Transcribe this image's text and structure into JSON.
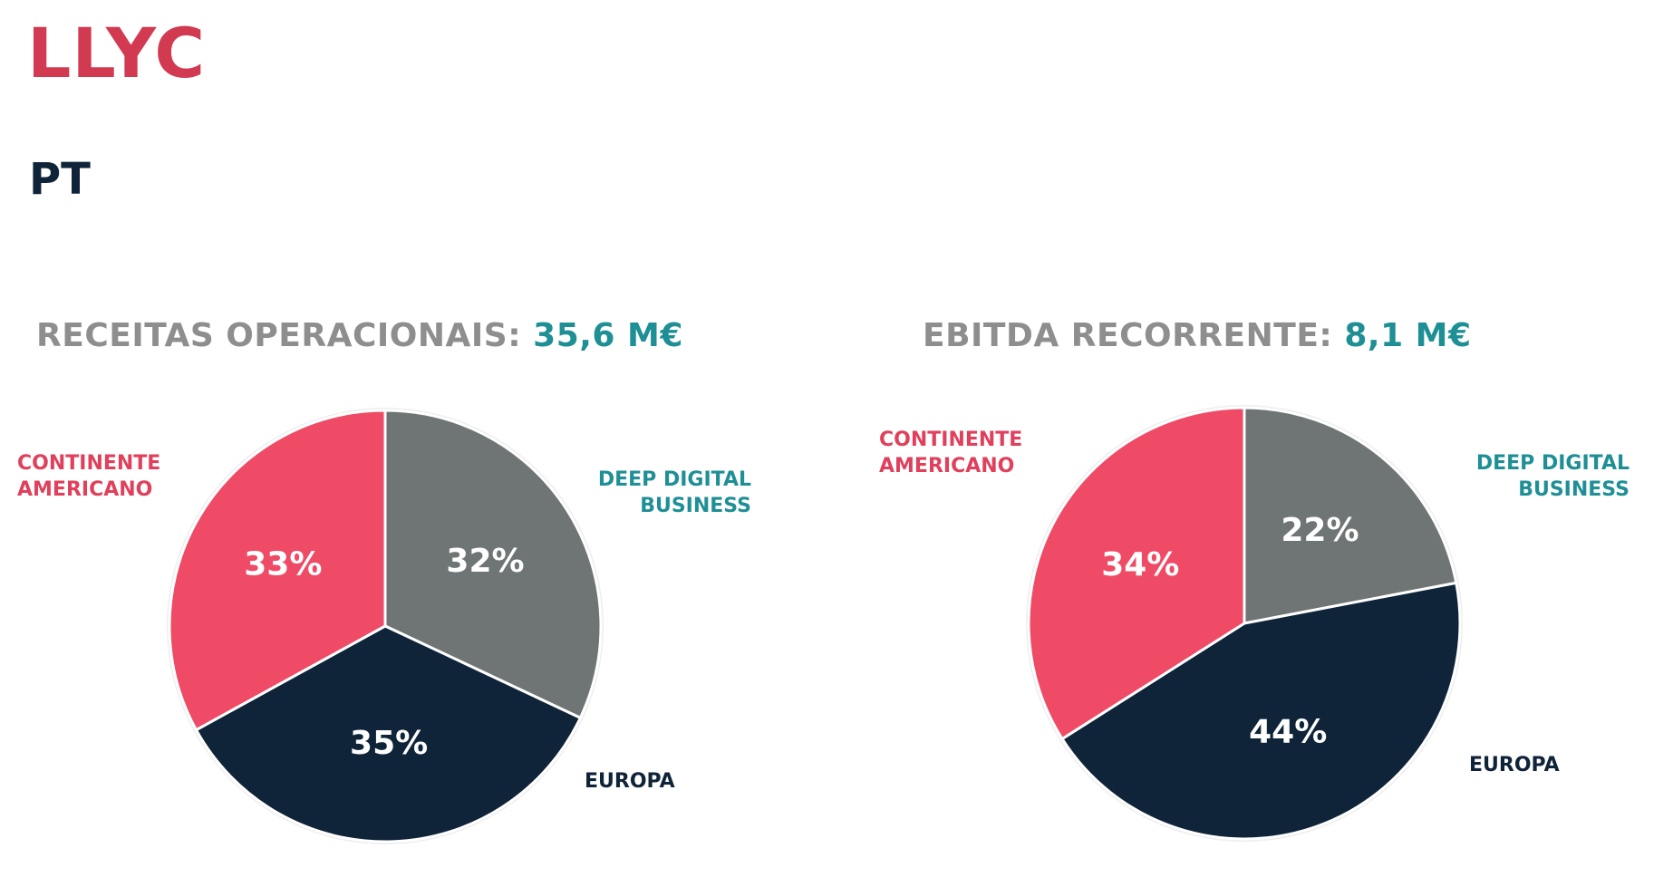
{
  "logo": "LLYC",
  "country": "PT",
  "chart_data": [
    {
      "type": "pie",
      "title": "RECEITAS OPERACIONAIS:",
      "title_value": "35,6 M€",
      "categories": [
        "DEEP DIGITAL BUSINESS",
        "EUROPA",
        "CONTINENTE AMERICANO"
      ],
      "values": [
        32,
        35,
        33
      ],
      "labels": [
        "32%",
        "35%",
        "33%"
      ],
      "colors": [
        "#6f7475",
        "#0f2439",
        "#ef4a66"
      ]
    },
    {
      "type": "pie",
      "title": "EBITDA RECORRENTE:",
      "title_value": "8,1 M€",
      "categories": [
        "DEEP DIGITAL BUSINESS",
        "EUROPA",
        "CONTINENTE AMERICANO"
      ],
      "values": [
        22,
        44,
        34
      ],
      "labels": [
        "22%",
        "44%",
        "34%"
      ],
      "colors": [
        "#6f7475",
        "#0f2439",
        "#ef4a66"
      ]
    }
  ],
  "legend_labels": {
    "continente_1": "CONTINENTE",
    "continente_2": "AMERICANO",
    "deep_1": "DEEP DIGITAL",
    "deep_2": "BUSINESS",
    "europa": "EUROPA"
  }
}
